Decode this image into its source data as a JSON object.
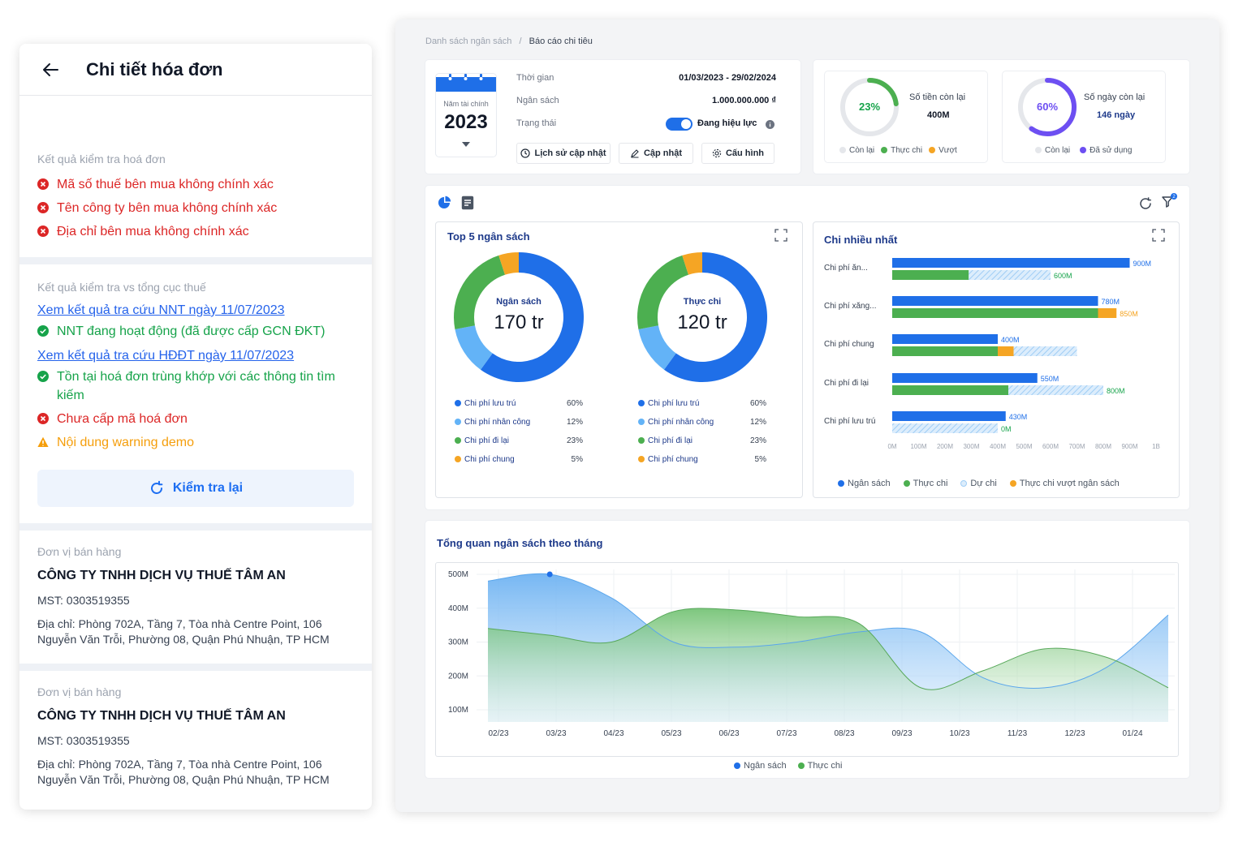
{
  "invoice": {
    "title": "Chi tiết hóa đơn",
    "check_label": "Kết quả kiểm tra hoá đơn",
    "check_errors": [
      "Mã số thuế bên mua không chính xác",
      "Tên công ty bên mua không chính xác",
      "Địa chỉ bên mua không chính xác"
    ],
    "tax_label": "Kết quả kiểm tra vs tổng cục thuế",
    "link1": "Xem kết quả tra cứu NNT ngày 11/07/2023",
    "ok1": "NNT đang hoạt động (đã được cấp GCN ĐKT)",
    "link2": "Xem kết quả tra cứu HĐĐT ngày 11/07/2023",
    "ok2": "Tồn tại hoá đơn trùng khớp với các thông tin tìm kiếm",
    "err_code": "Chưa cấp mã hoá đơn",
    "warning": "Nội dung warning demo",
    "recheck": "Kiểm tra lại",
    "sellers": [
      {
        "label": "Đơn vị bán hàng",
        "name": "CÔNG TY TNHH DỊCH VỤ THUẾ TÂM AN",
        "mst": "MST: 0303519355",
        "addr1": "Địa chỉ: Phòng 702A, Tầng 7, Tòa nhà Centre Point, 106",
        "addr2": "Nguyễn Văn Trỗi, Phường 08, Quận Phú Nhuận, TP HCM"
      },
      {
        "label": "Đơn vị bán hàng",
        "name": "CÔNG TY TNHH DỊCH VỤ THUẾ TÂM AN",
        "mst": "MST: 0303519355",
        "addr1": "Địa chỉ: Phòng 702A, Tầng 7, Tòa nhà Centre Point, 106",
        "addr2": "Nguyễn Văn Trỗi, Phường 08, Quận Phú Nhuận, TP HCM"
      }
    ]
  },
  "dashboard": {
    "breadcrumb": [
      "Danh sách ngân sách",
      "Báo cáo chi tiêu"
    ],
    "fiscal_label": "Năm tài chính",
    "fiscal_year": "2023",
    "info": {
      "time_label": "Thời gian",
      "time_value": "01/03/2023 - 29/02/2024",
      "budget_label": "Ngân sách",
      "budget_value": "1.000.000.000 ₫",
      "status_label": "Trạng thái",
      "status_value": "Đang hiệu lực"
    },
    "buttons": [
      "Lịch sử cập nhật",
      "Cập nhật",
      "Cấu hình"
    ],
    "money_remaining": {
      "pct": "23%",
      "pct_value": 23,
      "label": "Số tiền còn lại",
      "value": "400M",
      "legend": [
        "Còn lại",
        "Thực chi",
        "Vượt"
      ]
    },
    "days_remaining": {
      "pct": "60%",
      "pct_value": 60,
      "label": "Số ngày còn lại",
      "value": "146 ngày",
      "legend": [
        "Còn lại",
        "Đã sử dụng"
      ]
    },
    "colors": {
      "blue": "#1f6fe8",
      "light_blue": "#63b3f7",
      "green": "#4caf50",
      "orange": "#f5a524",
      "hatch": "#bfe0fb",
      "purple": "#6d4ff2"
    },
    "top5": {
      "title": "Top 5 ngân sách",
      "donuts": [
        {
          "label": "Ngân sách",
          "value": "170 tr",
          "slices": [
            60,
            12,
            23,
            5
          ]
        },
        {
          "label": "Thực chi",
          "value": "120 tr",
          "slices": [
            60,
            12,
            23,
            5
          ]
        }
      ],
      "legend": [
        {
          "name": "Chi phí lưu trú",
          "pct": "60%"
        },
        {
          "name": "Chi phí nhân công",
          "pct": "12%"
        },
        {
          "name": "Chi phí đi lại",
          "pct": "23%"
        },
        {
          "name": "Chi phí chung",
          "pct": "5%"
        }
      ]
    },
    "top_spend": {
      "title": "Chi nhiều nhất",
      "legend": [
        "Ngân sách",
        "Thực chi",
        "Dự chi",
        "Thực chi vượt ngân sách"
      ]
    },
    "monthly": {
      "title": "Tổng quan ngân sách theo tháng",
      "legend": [
        "Ngân sách",
        "Thực chi"
      ]
    }
  },
  "chart_data": [
    {
      "type": "pie",
      "title": "Top 5 ngân sách",
      "categories": [
        "Chi phí lưu trú",
        "Chi phí nhân công",
        "Chi phí đi lại",
        "Chi phí chung"
      ],
      "series": [
        {
          "name": "Ngân sách",
          "values": [
            60,
            12,
            23,
            5
          ]
        },
        {
          "name": "Thực chi",
          "values": [
            60,
            12,
            23,
            5
          ]
        }
      ]
    },
    {
      "type": "bar",
      "title": "Chi nhiều nhất",
      "categories": [
        "Chi phí ăn...",
        "Chi phí xăng...",
        "Chi phí chung",
        "Chi phí đi lại",
        "Chi phí lưu trú"
      ],
      "series": [
        {
          "name": "Ngân sách",
          "values": [
            900,
            780,
            400,
            550,
            430
          ]
        },
        {
          "name": "Thực chi",
          "values": [
            290,
            780,
            400,
            440,
            0
          ]
        },
        {
          "name": "Dự chi",
          "values": [
            310,
            0,
            240,
            360,
            400
          ]
        },
        {
          "name": "Thực chi vượt ngân sách",
          "values": [
            0,
            70,
            60,
            0,
            0
          ]
        }
      ],
      "labels": [
        {
          "top": "900M",
          "bottom": "600M"
        },
        {
          "top": "780M",
          "bottom": "850M"
        },
        {
          "top": "400M",
          "bottom": ""
        },
        {
          "top": "550M",
          "bottom": "800M"
        },
        {
          "top": "430M",
          "bottom": "0M"
        }
      ],
      "xticks": [
        "0M",
        "100M",
        "200M",
        "300M",
        "400M",
        "500M",
        "600M",
        "700M",
        "800M",
        "900M",
        "1B"
      ],
      "xlim": [
        0,
        1000
      ]
    },
    {
      "type": "area",
      "title": "Tổng quan ngân sách theo tháng",
      "x": [
        "02/23",
        "03/23",
        "04/23",
        "05/23",
        "06/23",
        "07/23",
        "08/23",
        "09/23",
        "10/23",
        "11/23",
        "12/23",
        "01/24"
      ],
      "yticks": [
        "100M",
        "200M",
        "300M",
        "400M",
        "500M"
      ],
      "ylim": [
        100,
        500
      ],
      "series": [
        {
          "name": "Ngân sách",
          "values": [
            480,
            500,
            430,
            300,
            285,
            300,
            330,
            330,
            195,
            165,
            225,
            380
          ]
        },
        {
          "name": "Thực chi",
          "values": [
            340,
            320,
            300,
            390,
            395,
            375,
            355,
            165,
            215,
            280,
            255,
            165
          ]
        }
      ]
    }
  ]
}
